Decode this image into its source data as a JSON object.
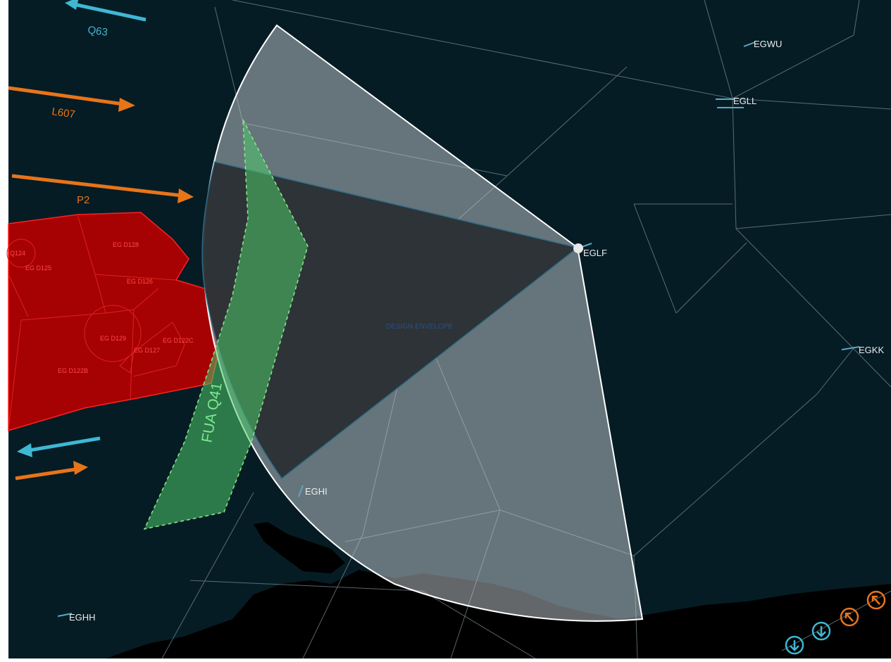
{
  "map": {
    "background_color": "#061c24",
    "airports": [
      {
        "id": "egwu",
        "code": "EGWU"
      },
      {
        "id": "egll",
        "code": "EGLL"
      },
      {
        "id": "eglf",
        "code": "EGLF"
      },
      {
        "id": "egkk",
        "code": "EGKK"
      },
      {
        "id": "eghi",
        "code": "EGHI"
      },
      {
        "id": "eghh",
        "code": "EGHH"
      }
    ],
    "routes": [
      {
        "id": "q63",
        "label": "Q63",
        "color": "#3fb7d4",
        "direction": "westbound"
      },
      {
        "id": "l607",
        "label": "L607",
        "color": "#e8741a",
        "direction": "eastbound"
      },
      {
        "id": "p2",
        "label": "P2",
        "color": "#e8741a",
        "direction": "eastbound"
      },
      {
        "id": "sw-west",
        "label": "",
        "color": "#3fb7d4",
        "direction": "westbound"
      },
      {
        "id": "sw-east",
        "label": "",
        "color": "#e8741a",
        "direction": "eastbound"
      }
    ],
    "danger_areas": {
      "color": "#c00000",
      "labels": [
        "Q124",
        "EG D128",
        "EG D125",
        "EG D126",
        "EG D129",
        "EG D122C",
        "EG D127",
        "EG D122B"
      ]
    },
    "fua": {
      "label": "FUA Q41",
      "color": "#4cc86a"
    },
    "design_envelope": {
      "label": "DESIGN ENVELOPE"
    },
    "waypoint_symbols": [
      {
        "id": "sym1",
        "color": "#3fb7d4",
        "icon": "down-arrow-circle"
      },
      {
        "id": "sym2",
        "color": "#3fb7d4",
        "icon": "down-arrow-circle"
      },
      {
        "id": "sym3",
        "color": "#e8741a",
        "icon": "up-arrow-circle"
      },
      {
        "id": "sym4",
        "color": "#e8741a",
        "icon": "up-arrow-circle"
      }
    ]
  }
}
